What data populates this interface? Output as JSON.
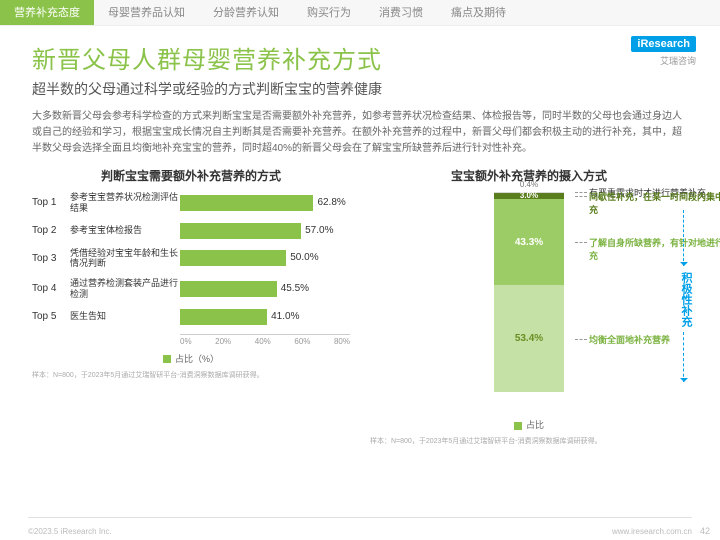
{
  "tabs": {
    "items": [
      "营养补充态度",
      "母婴营养品认知",
      "分龄营养认知",
      "购买行为",
      "消费习惯",
      "痛点及期待"
    ],
    "active_index": 0
  },
  "logo": {
    "brand": "iResearch",
    "sub": "艾瑞咨询"
  },
  "title": "新晋父母人群母婴营养补充方式",
  "subtitle": "超半数的父母通过科学或经验的方式判断宝宝的营养健康",
  "description": "大多数新晋父母会参考科学检查的方式来判断宝宝是否需要额外补充营养，如参考营养状况检查结果、体检报告等，同时半数的父母也会通过身边人或自己的经验和学习，根据宝宝成长情况自主判断其是否需要补充营养。在额外补充营养的过程中，新晋父母们都会积极主动的进行补充，其中，超半数父母会选择全面且均衡地补充宝宝的营养，同时超40%的新晋父母会在了解宝宝所缺营养后进行针对性补充。",
  "bar_chart": {
    "type": "bar-horizontal",
    "title": "判断宝宝需要额外补充营养的方式",
    "bar_color": "#8bc34a",
    "value_suffix": "%",
    "xlim": [
      0,
      80
    ],
    "xtick_step": 20,
    "xticks": [
      "0%",
      "20%",
      "40%",
      "60%",
      "80%"
    ],
    "legend": "占比（%）",
    "rows": [
      {
        "rank": "Top 1",
        "label": "参考宝宝营养状况检测评估结果",
        "value": 62.8
      },
      {
        "rank": "Top 2",
        "label": "参考宝宝体检报告",
        "value": 57.0
      },
      {
        "rank": "Top 3",
        "label": "凭借经验对宝宝年龄和生长情况判断",
        "value": 50.0
      },
      {
        "rank": "Top 4",
        "label": "通过营养检测套装产品进行检测",
        "value": 45.5
      },
      {
        "rank": "Top 5",
        "label": "医生告知",
        "value": 41.0
      }
    ],
    "source": "样本：N=800，于2023年5月通过艾瑞智研平台-消费洞察数据库调研获得。"
  },
  "stack_chart": {
    "type": "stacked-column",
    "title": "宝宝额外补充营养的摄入方式",
    "legend": "占比",
    "segments": [
      {
        "value": 0.4,
        "label": "0.4%",
        "color": "#d9d9d9",
        "text_color": "#777",
        "anno": "有严重需求时才进行营养补充",
        "anno_color": "#333"
      },
      {
        "value": 3.0,
        "label": "3.0%",
        "color": "#5a7d1e",
        "anno": "间歇性补充，在某一时间段内集中补充",
        "anno_color": "#5a7d1e",
        "bold": true
      },
      {
        "value": 43.3,
        "label": "43.3%",
        "color": "#9ccc65",
        "anno": "了解自身所缺营养，有针对地进行补充",
        "anno_color": "#7cb342",
        "bold": true
      },
      {
        "value": 53.4,
        "label": "53.4%",
        "color": "#c5e1a5",
        "text_color": "#6b8e23",
        "anno": "均衡全面地补充营养",
        "anno_color": "#7cb342",
        "bold": true
      }
    ],
    "side_label": "积极性补充",
    "side_label_color": "#00a0e9",
    "source": "样本：N=800，于2023年5月通过艾瑞智研平台-消费洞察数据库调研获得。"
  },
  "footer": {
    "left": "©2023.5 iResearch Inc.",
    "right": "www.iresearch.com.cn",
    "page": "42"
  }
}
